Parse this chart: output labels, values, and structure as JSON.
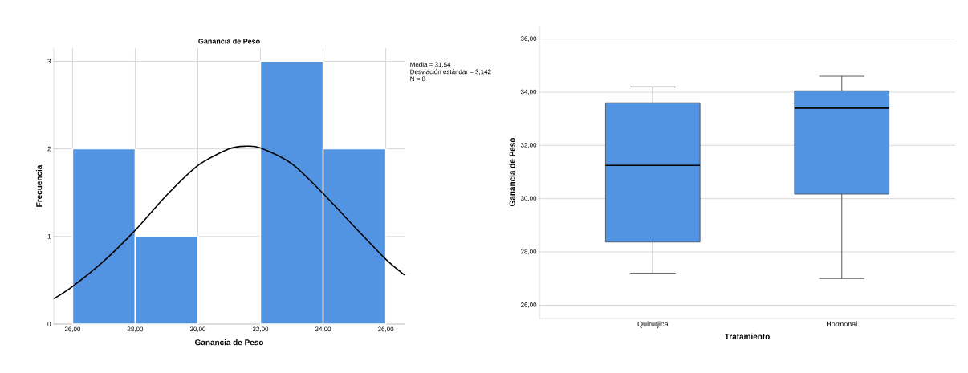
{
  "chart_data": [
    {
      "type": "histogram",
      "title": "Ganancia de Peso",
      "xlabel": "Ganancia de Peso",
      "ylabel": "Frecuencia",
      "annotations": [
        "Media = 31,54",
        "Desviación estándar = 3,142",
        "N = 8"
      ],
      "bins": [
        26,
        28,
        30,
        32,
        34,
        36
      ],
      "series": [
        {
          "type": "histogram",
          "color": "#5294e2",
          "values": [
            2,
            1,
            0,
            3,
            2
          ]
        },
        {
          "type": "line",
          "color": "#000000",
          "x": [
            25.4,
            26,
            27,
            28,
            29,
            30,
            31,
            31.54,
            32,
            33,
            34,
            35,
            36,
            36.6
          ],
          "values": [
            0.29,
            0.43,
            0.72,
            1.07,
            1.47,
            1.81,
            2.0,
            2.03,
            2.01,
            1.83,
            1.49,
            1.11,
            0.74,
            0.56
          ]
        }
      ],
      "xlim": [
        25.4,
        36.6
      ],
      "ylim": [
        0,
        3.15
      ],
      "xticks": [
        {
          "value": 26,
          "label": "26,00"
        },
        {
          "value": 28,
          "label": "28,00"
        },
        {
          "value": 30,
          "label": "30,00"
        },
        {
          "value": 32,
          "label": "32,00"
        },
        {
          "value": 34,
          "label": "34,00"
        },
        {
          "value": 36,
          "label": "36,00"
        }
      ],
      "yticks": [
        0,
        1,
        2,
        3
      ],
      "grid": true
    },
    {
      "type": "box",
      "xlabel": "Tratamiento",
      "ylabel": "Ganancia de Peso",
      "categories": [
        "Quirurjica",
        "Hormonal"
      ],
      "color": "#5294e2",
      "boxes": [
        {
          "low": 27.2,
          "q1": 28.37,
          "median": 31.25,
          "q3": 33.6,
          "high": 34.2
        },
        {
          "low": 27.0,
          "q1": 30.17,
          "median": 33.4,
          "q3": 34.05,
          "high": 34.6
        }
      ],
      "ylim": [
        25.5,
        36.5
      ],
      "yticks": [
        {
          "value": 26,
          "label": "26,00"
        },
        {
          "value": 28,
          "label": "28,00"
        },
        {
          "value": 30,
          "label": "30,00"
        },
        {
          "value": 32,
          "label": "32,00"
        },
        {
          "value": 34,
          "label": "34,00"
        },
        {
          "value": 36,
          "label": "36,00"
        }
      ],
      "grid": "y"
    }
  ]
}
